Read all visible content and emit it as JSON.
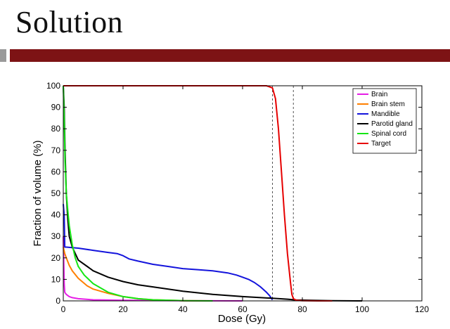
{
  "slide": {
    "title": "Solution",
    "accent_color": "#7d1315"
  },
  "chart_data": {
    "type": "line",
    "title": "",
    "xlabel": "Dose (Gy)",
    "ylabel": "Fraction of volume (%)",
    "xlim": [
      0,
      120
    ],
    "ylim": [
      0,
      100
    ],
    "xticks": [
      0,
      20,
      40,
      60,
      80,
      100,
      120
    ],
    "yticks": [
      0,
      10,
      20,
      30,
      40,
      50,
      60,
      70,
      80,
      90,
      100
    ],
    "grid": false,
    "legend_position": "top-right",
    "reference_lines_x": [
      70,
      77
    ],
    "series": [
      {
        "name": "Brain",
        "color": "#e61ee6",
        "x": [
          0,
          0.3,
          0.5,
          1,
          2,
          3,
          5,
          10,
          20,
          40,
          60
        ],
        "y": [
          30,
          8,
          4,
          3,
          2,
          1.5,
          1,
          0.5,
          0.3,
          0.1,
          0
        ]
      },
      {
        "name": "Brain stem",
        "color": "#ff7f00",
        "x": [
          0,
          0.5,
          1,
          2,
          3,
          5,
          8,
          10,
          15,
          20,
          25,
          30,
          40,
          50
        ],
        "y": [
          25,
          22,
          20,
          16.5,
          14,
          10.5,
          7,
          5.5,
          3.5,
          2,
          1,
          0.5,
          0.1,
          0
        ]
      },
      {
        "name": "Mandible",
        "color": "#1414dc",
        "x": [
          0,
          0.3,
          0.5,
          1,
          5,
          10,
          15,
          18,
          20,
          22,
          25,
          30,
          35,
          40,
          45,
          50,
          55,
          58,
          60,
          62,
          64,
          66,
          68,
          69,
          70
        ],
        "y": [
          45,
          40,
          25,
          25,
          24.5,
          23.5,
          22.5,
          22,
          21,
          19.5,
          18.5,
          17,
          16,
          15,
          14.5,
          14,
          13,
          12,
          11,
          10,
          8.5,
          6.5,
          4,
          2.5,
          0.5
        ]
      },
      {
        "name": "Parotid gland",
        "color": "#000000",
        "x": [
          0,
          0.3,
          0.6,
          1,
          1.5,
          2,
          3,
          5,
          8,
          10,
          15,
          20,
          25,
          30,
          40,
          50,
          60,
          70,
          75,
          78,
          85,
          90,
          100
        ],
        "y": [
          100,
          90,
          70,
          50,
          38,
          30,
          25,
          19,
          16,
          14,
          11,
          9,
          7.5,
          6.5,
          4.5,
          3,
          2,
          1.2,
          0.8,
          0.4,
          0.2,
          0.1,
          0
        ]
      },
      {
        "name": "Spinal cord",
        "color": "#14e614",
        "x": [
          0,
          0.3,
          0.6,
          1,
          1.5,
          2,
          3,
          4,
          5,
          7,
          10,
          15,
          20,
          25,
          30,
          40,
          50
        ],
        "y": [
          100,
          85,
          65,
          50,
          42,
          35,
          26,
          20,
          16,
          12,
          8,
          4,
          2,
          1,
          0.5,
          0.1,
          0
        ]
      },
      {
        "name": "Target",
        "color": "#e60000",
        "x": [
          0,
          68,
          70,
          71,
          72,
          73,
          74,
          75,
          76,
          76.5,
          77,
          78,
          80,
          85,
          90
        ],
        "y": [
          100,
          100,
          99,
          94,
          80,
          60,
          40,
          22,
          9,
          3,
          1,
          0.3,
          0.1,
          0,
          0
        ]
      }
    ]
  }
}
